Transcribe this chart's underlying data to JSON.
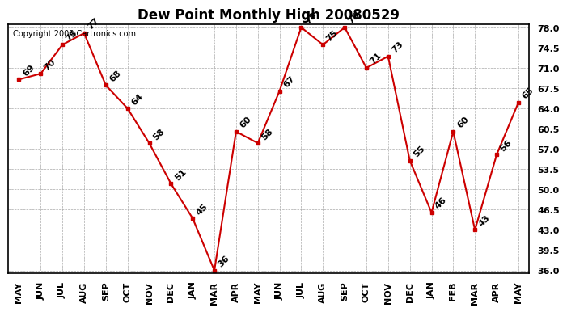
{
  "title": "Dew Point Monthly High 20080529",
  "copyright": "Copyright 2008 Cartronics.com",
  "months": [
    "MAY",
    "JUN",
    "JUL",
    "AUG",
    "SEP",
    "OCT",
    "NOV",
    "DEC",
    "JAN",
    "MAR",
    "APR",
    "MAY",
    "JUN",
    "JUL",
    "AUG",
    "SEP",
    "OCT",
    "NOV",
    "DEC",
    "JAN",
    "FEB",
    "MAR",
    "APR",
    "MAY"
  ],
  "values": [
    69,
    70,
    75,
    77,
    68,
    64,
    58,
    51,
    45,
    36,
    60,
    58,
    67,
    78,
    75,
    78,
    71,
    73,
    55,
    46,
    60,
    43,
    56,
    65
  ],
  "line_color": "#cc0000",
  "marker_color": "#cc0000",
  "bg_color": "#ffffff",
  "grid_color": "#aaaaaa",
  "ylim_min": 36.0,
  "ylim_max": 78.0,
  "yticks": [
    36.0,
    39.5,
    43.0,
    46.5,
    50.0,
    53.5,
    57.0,
    60.5,
    64.0,
    67.5,
    71.0,
    74.5,
    78.0
  ],
  "title_fontsize": 12,
  "label_fontsize": 8,
  "copyright_fontsize": 7
}
